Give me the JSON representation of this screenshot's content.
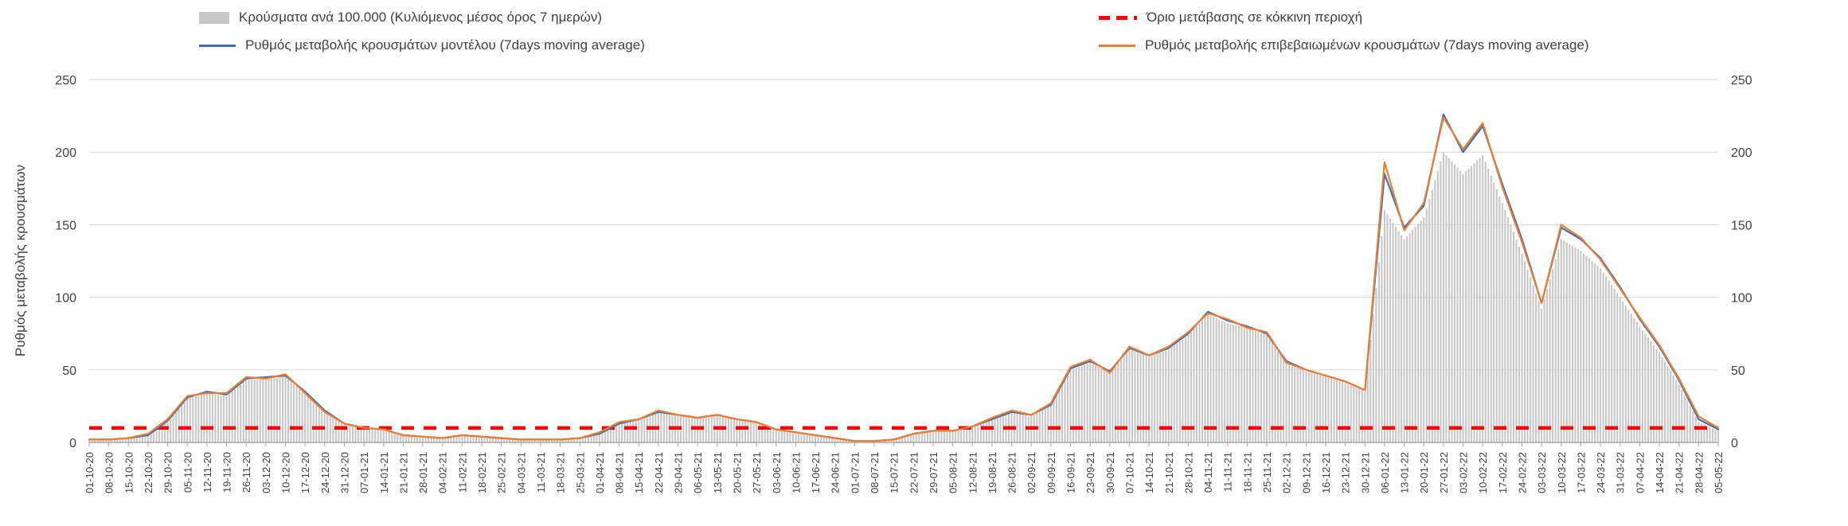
{
  "legend": {
    "bars_label": "Κρούσματα ανά 100.000 (Κυλιόμενος μέσος όρος 7 ημερών)",
    "threshold_label": "Όριο μετάβασης σε κόκκινη περιοχή",
    "model_label": "Ρυθμός μεταβολής κρουσμάτων μοντέλου (7days moving average)",
    "confirmed_label": "Ρυθμός μεταβολής επιβεβαιωμένων κρουσμάτων (7days moving average)"
  },
  "axes": {
    "y_title": "Ρυθμός μεταβολής κρουσμάτων",
    "y_ticks": [
      0,
      50,
      100,
      150,
      200,
      250
    ]
  },
  "colors": {
    "bars": "#c6c6c6",
    "model": "#3a6fb7",
    "confirmed": "#ed7d31",
    "threshold": "#ff0000",
    "grid": "#d9d9d9",
    "axis": "#a6a6a6",
    "text": "#404040"
  },
  "chart_data": {
    "type": "bar",
    "title": "",
    "xlabel": "",
    "ylabel": "Ρυθμός μεταβολής κρουσμάτων",
    "ylim": [
      0,
      250
    ],
    "grid": true,
    "legend_position": "top",
    "threshold_value": 10,
    "threshold_label": "Όριο μετάβασης σε κόκκινη περιοχή",
    "categories": [
      "01-10-20",
      "08-10-20",
      "15-10-20",
      "22-10-20",
      "29-10-20",
      "05-11-20",
      "12-11-20",
      "19-11-20",
      "26-11-20",
      "03-12-20",
      "10-12-20",
      "17-12-20",
      "24-12-20",
      "31-12-20",
      "07-01-21",
      "14-01-21",
      "21-01-21",
      "28-01-21",
      "04-02-21",
      "11-02-21",
      "18-02-21",
      "25-02-21",
      "04-03-21",
      "11-03-21",
      "18-03-21",
      "25-03-21",
      "01-04-21",
      "08-04-21",
      "15-04-21",
      "22-04-21",
      "29-04-21",
      "06-05-21",
      "13-05-21",
      "20-05-21",
      "27-05-21",
      "03-06-21",
      "10-06-21",
      "17-06-21",
      "24-06-21",
      "01-07-21",
      "08-07-21",
      "15-07-21",
      "22-07-21",
      "29-07-21",
      "05-08-21",
      "12-08-21",
      "19-08-21",
      "26-08-21",
      "02-09-21",
      "09-09-21",
      "16-09-21",
      "23-09-21",
      "30-09-21",
      "07-10-21",
      "14-10-21",
      "21-10-21",
      "28-10-21",
      "04-11-21",
      "11-11-21",
      "18-11-21",
      "25-11-21",
      "02-12-21",
      "09-12-21",
      "16-12-21",
      "23-12-21",
      "30-12-21",
      "06-01-22",
      "13-01-22",
      "20-01-22",
      "27-01-22",
      "03-02-22",
      "10-02-22",
      "17-02-22",
      "24-02-22",
      "03-03-22",
      "10-03-22",
      "17-03-22",
      "24-03-22",
      "31-03-22",
      "07-04-22",
      "14-04-22",
      "21-04-22",
      "28-04-22",
      "05-05-22"
    ],
    "series": [
      {
        "name": "Κρούσματα ανά 100.000 (Κυλιόμενος μέσος όρος 7 ημερών)",
        "type": "bar",
        "values": [
          2,
          2,
          3,
          5,
          14,
          30,
          34,
          32,
          43,
          44,
          45,
          34,
          22,
          13,
          10,
          9,
          5,
          4,
          3,
          5,
          4,
          3,
          2,
          2,
          2,
          3,
          6,
          13,
          16,
          21,
          19,
          17,
          19,
          16,
          14,
          9,
          7,
          5,
          3,
          1,
          1,
          2,
          6,
          8,
          8,
          11,
          16,
          21,
          19,
          26,
          50,
          55,
          48,
          64,
          59,
          64,
          74,
          88,
          82,
          79,
          74,
          55,
          49,
          45,
          41,
          35,
          160,
          140,
          155,
          200,
          185,
          198,
          165,
          130,
          92,
          140,
          132,
          120,
          100,
          80,
          62,
          40,
          14,
          8
        ]
      },
      {
        "name": "Ρυθμός μεταβολής κρουσμάτων μοντέλου (7days moving average)",
        "type": "line",
        "values": [
          2,
          2,
          3,
          5,
          15,
          31,
          35,
          33,
          44,
          45,
          46,
          35,
          22,
          13,
          10,
          9,
          5,
          4,
          3,
          5,
          4,
          3,
          2,
          2,
          2,
          3,
          6,
          13,
          16,
          21,
          19,
          17,
          19,
          16,
          14,
          9,
          7,
          5,
          3,
          1,
          1,
          2,
          6,
          8,
          8,
          11,
          16,
          21,
          19,
          26,
          51,
          56,
          49,
          65,
          60,
          65,
          75,
          90,
          84,
          80,
          75,
          56,
          50,
          46,
          42,
          36,
          185,
          148,
          163,
          226,
          200,
          218,
          178,
          140,
          96,
          148,
          140,
          127,
          107,
          85,
          66,
          43,
          16,
          9
        ]
      },
      {
        "name": "Ρυθμός μεταβολής επιβεβαιωμένων κρουσμάτων (7days moving average)",
        "type": "line",
        "values": [
          2,
          2,
          3,
          6,
          16,
          32,
          34,
          34,
          45,
          44,
          47,
          34,
          21,
          13,
          10,
          9,
          5,
          4,
          3,
          5,
          4,
          3,
          2,
          2,
          2,
          3,
          7,
          14,
          16,
          22,
          19,
          17,
          19,
          16,
          14,
          9,
          7,
          5,
          3,
          1,
          1,
          2,
          6,
          8,
          8,
          11,
          17,
          22,
          19,
          27,
          52,
          57,
          48,
          66,
          60,
          66,
          76,
          89,
          85,
          79,
          76,
          55,
          50,
          46,
          42,
          36,
          193,
          146,
          165,
          224,
          202,
          220,
          176,
          138,
          96,
          150,
          141,
          126,
          106,
          86,
          67,
          44,
          18,
          10
        ]
      }
    ]
  }
}
